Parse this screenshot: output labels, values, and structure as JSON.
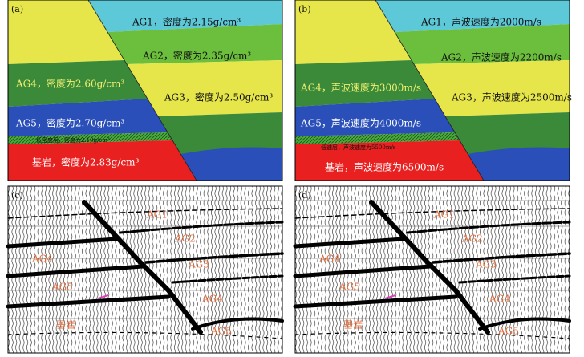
{
  "panels": [
    {
      "label": "(a)",
      "layers": [
        "AG1，密度为2.15g/cm³",
        "AG2，密度为2.35g/cm³",
        "AG3，密度为2.50g/cm³",
        "AG4，密度为2.60g/cm³",
        "AG5，密度为2.70g/cm³",
        "低密度层，密度为2.10g/cm³",
        "基岩，密度为2.83g/cm³"
      ]
    },
    {
      "label": "(b)",
      "layers": [
        "AG1，声波速度为2000m/s",
        "AG2，声波速度为2200m/s",
        "AG3，声波速度为2500m/s",
        "AG4，声波速度为3000m/s",
        "AG5，声波速度为4000m/s",
        "低速层，声波速度为5500m/s",
        "基岩，声波速度为6500m/s"
      ]
    },
    {
      "label": "(c)",
      "layers": [
        "AG1",
        "AG2",
        "AG4",
        "AG3",
        "AG5",
        "AG4",
        "基岩",
        "AG5"
      ]
    },
    {
      "label": "(d)",
      "layers": [
        "AG1",
        "AG2",
        "AG4",
        "AG3",
        "AG5",
        "AG4",
        "基岩",
        "AG5"
      ]
    }
  ]
}
